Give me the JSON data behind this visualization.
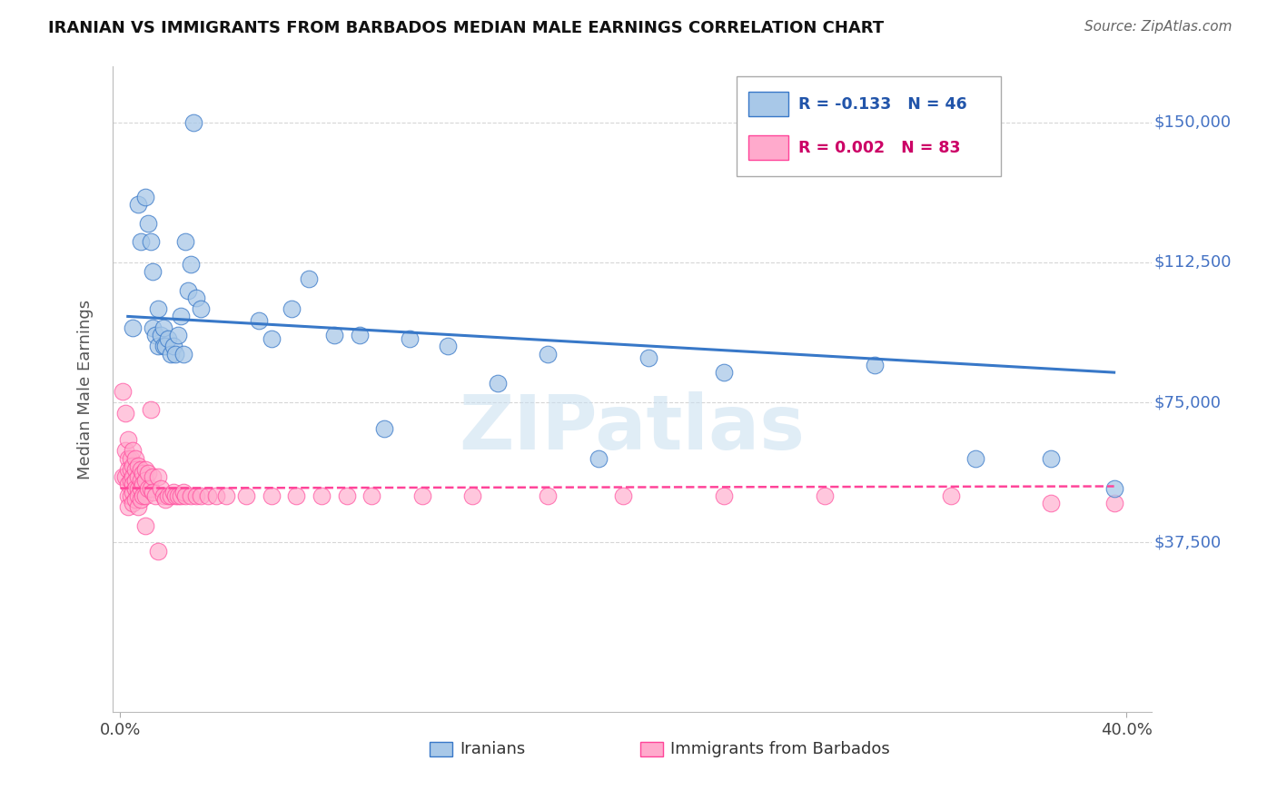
{
  "title": "IRANIAN VS IMMIGRANTS FROM BARBADOS MEDIAN MALE EARNINGS CORRELATION CHART",
  "source": "Source: ZipAtlas.com",
  "ylabel": "Median Male Earnings",
  "yticks": [
    0,
    37500,
    75000,
    112500,
    150000
  ],
  "ytick_labels": [
    "",
    "$37,500",
    "$75,000",
    "$112,500",
    "$150,000"
  ],
  "ylim": [
    -8000,
    165000
  ],
  "xlim": [
    -0.003,
    0.41
  ],
  "background_color": "#ffffff",
  "grid_color": "#cccccc",
  "watermark": "ZIPatlas",
  "blue_R": "-0.133",
  "blue_N": "46",
  "pink_R": "0.002",
  "pink_N": "83",
  "legend_label_blue": "Iranians",
  "legend_label_pink": "Immigrants from Barbados",
  "blue_color": "#a8c8e8",
  "blue_line_color": "#3878c8",
  "pink_color": "#ffaacc",
  "pink_line_color": "#ff4499",
  "iranians_x": [
    0.005,
    0.007,
    0.008,
    0.01,
    0.011,
    0.012,
    0.013,
    0.013,
    0.014,
    0.015,
    0.015,
    0.016,
    0.017,
    0.017,
    0.018,
    0.019,
    0.02,
    0.021,
    0.022,
    0.023,
    0.024,
    0.025,
    0.026,
    0.027,
    0.028,
    0.029,
    0.03,
    0.032,
    0.055,
    0.06,
    0.068,
    0.075,
    0.085,
    0.095,
    0.105,
    0.115,
    0.13,
    0.15,
    0.17,
    0.19,
    0.21,
    0.24,
    0.3,
    0.34,
    0.37,
    0.395
  ],
  "iranians_y": [
    95000,
    128000,
    118000,
    130000,
    123000,
    118000,
    110000,
    95000,
    93000,
    100000,
    90000,
    93000,
    90000,
    95000,
    90000,
    92000,
    88000,
    90000,
    88000,
    93000,
    98000,
    88000,
    118000,
    105000,
    112000,
    150000,
    103000,
    100000,
    97000,
    92000,
    100000,
    108000,
    93000,
    93000,
    68000,
    92000,
    90000,
    80000,
    88000,
    60000,
    87000,
    83000,
    85000,
    60000,
    60000,
    52000
  ],
  "barbados_x": [
    0.001,
    0.001,
    0.002,
    0.002,
    0.002,
    0.003,
    0.003,
    0.003,
    0.003,
    0.003,
    0.003,
    0.004,
    0.004,
    0.004,
    0.004,
    0.005,
    0.005,
    0.005,
    0.005,
    0.005,
    0.005,
    0.006,
    0.006,
    0.006,
    0.006,
    0.006,
    0.007,
    0.007,
    0.007,
    0.007,
    0.007,
    0.008,
    0.008,
    0.008,
    0.008,
    0.009,
    0.009,
    0.009,
    0.01,
    0.01,
    0.01,
    0.011,
    0.011,
    0.012,
    0.012,
    0.013,
    0.013,
    0.014,
    0.015,
    0.016,
    0.017,
    0.018,
    0.019,
    0.02,
    0.021,
    0.022,
    0.023,
    0.024,
    0.025,
    0.026,
    0.028,
    0.03,
    0.032,
    0.035,
    0.038,
    0.042,
    0.05,
    0.06,
    0.07,
    0.08,
    0.09,
    0.1,
    0.12,
    0.14,
    0.17,
    0.2,
    0.24,
    0.28,
    0.33,
    0.37,
    0.395,
    0.01,
    0.015
  ],
  "barbados_y": [
    78000,
    55000,
    72000,
    62000,
    55000,
    65000,
    60000,
    57000,
    53000,
    50000,
    47000,
    60000,
    57000,
    54000,
    50000,
    62000,
    58000,
    55000,
    53000,
    51000,
    48000,
    60000,
    57000,
    54000,
    52000,
    49000,
    58000,
    55000,
    52000,
    50000,
    47000,
    57000,
    54000,
    52000,
    49000,
    56000,
    53000,
    50000,
    57000,
    54000,
    50000,
    56000,
    52000,
    73000,
    52000,
    55000,
    51000,
    50000,
    55000,
    52000,
    50000,
    49000,
    50000,
    50000,
    51000,
    50000,
    50000,
    50000,
    51000,
    50000,
    50000,
    50000,
    50000,
    50000,
    50000,
    50000,
    50000,
    50000,
    50000,
    50000,
    50000,
    50000,
    50000,
    50000,
    50000,
    50000,
    50000,
    50000,
    50000,
    48000,
    48000,
    42000,
    35000
  ],
  "blue_trend_x": [
    0.003,
    0.395
  ],
  "blue_trend_y": [
    98000,
    83000
  ],
  "pink_trend_x": [
    0.0,
    0.395
  ],
  "pink_trend_y": [
    52000,
    52500
  ]
}
